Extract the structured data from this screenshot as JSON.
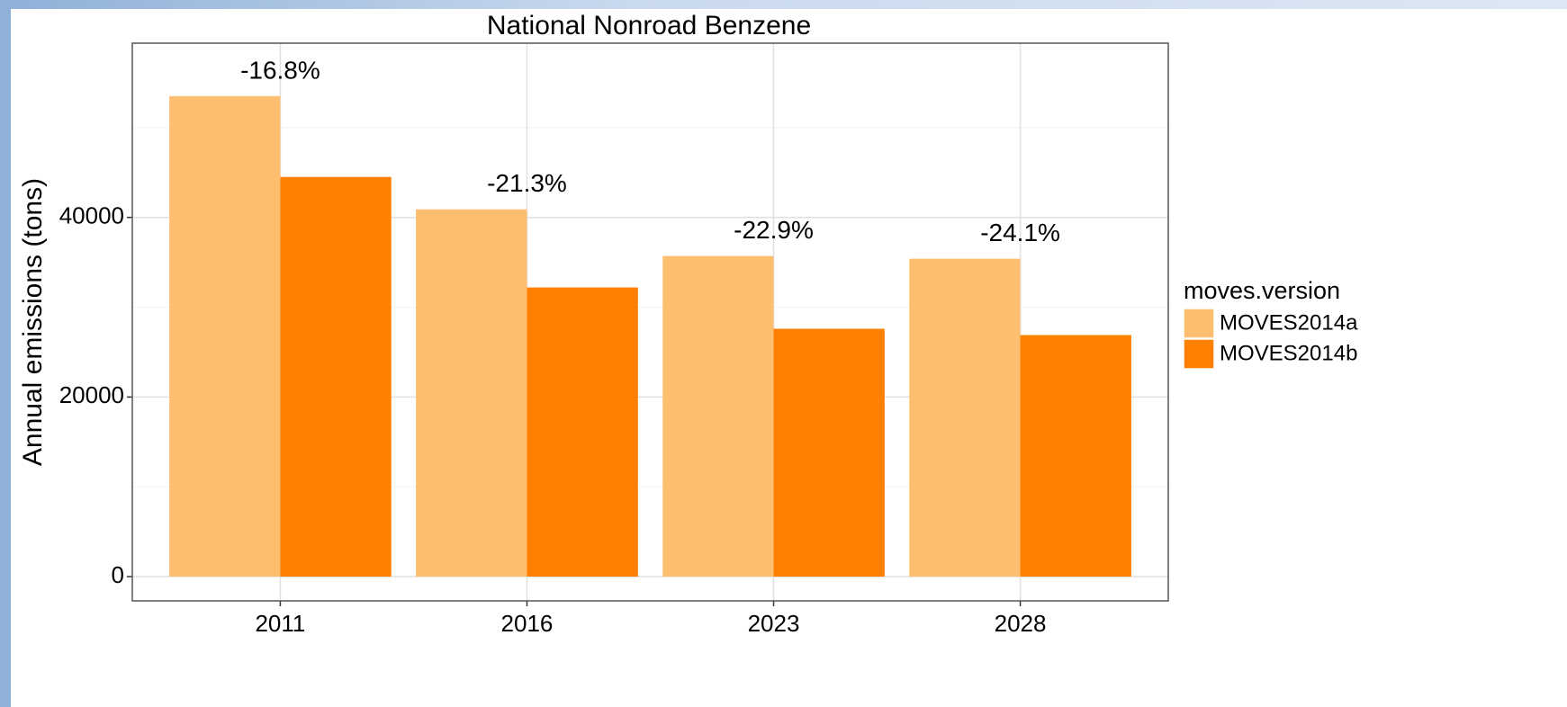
{
  "chart_data": {
    "type": "bar",
    "title": "National Nonroad Benzene",
    "y_label": "Annual emissions (tons)",
    "categories": [
      "2011",
      "2016",
      "2023",
      "2028"
    ],
    "series": [
      {
        "name": "MOVES2014a",
        "color": "#fdbf6f",
        "values": [
          53500,
          40900,
          35700,
          35400
        ]
      },
      {
        "name": "MOVES2014b",
        "color": "#ff7f00",
        "values": [
          44500,
          32200,
          27600,
          26900
        ]
      }
    ],
    "annotations": [
      "-16.8%",
      "-21.3%",
      "-22.9%",
      "-24.1%"
    ],
    "legend_title": "moves.version",
    "legend": "right",
    "ylim": [
      -2700,
      59400
    ],
    "yticks": [
      0,
      20000,
      40000
    ],
    "minor_yticks": [
      10000,
      30000,
      50000
    ],
    "grid": true
  }
}
